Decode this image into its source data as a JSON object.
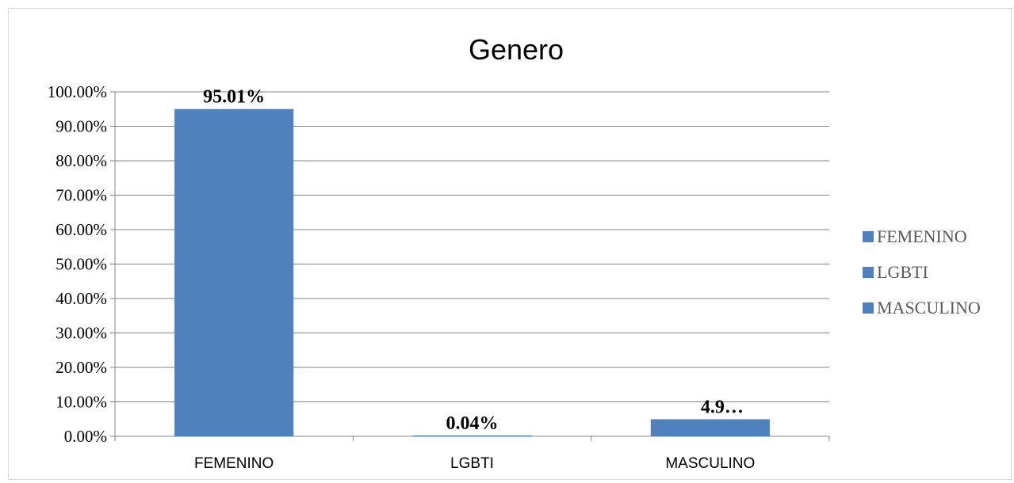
{
  "chart_data": {
    "type": "bar",
    "title": "Genero",
    "xlabel": "",
    "ylabel": "",
    "categories": [
      "FEMENINO",
      "LGBTI",
      "MASCULINO"
    ],
    "values": [
      95.01,
      0.04,
      4.95
    ],
    "data_labels": [
      "95.01%",
      "0.04%",
      "4.9…"
    ],
    "ylim": [
      0,
      100
    ],
    "yticks": [
      "0.00%",
      "10.00%",
      "20.00%",
      "30.00%",
      "40.00%",
      "50.00%",
      "60.00%",
      "70.00%",
      "80.00%",
      "90.00%",
      "100.00%"
    ],
    "grid": true,
    "legend": {
      "placement": "right",
      "entries": [
        "FEMENINO",
        "LGBTI",
        "MASCULINO"
      ]
    },
    "bar_color": "#4f81bd",
    "grid_color": "#868686"
  }
}
